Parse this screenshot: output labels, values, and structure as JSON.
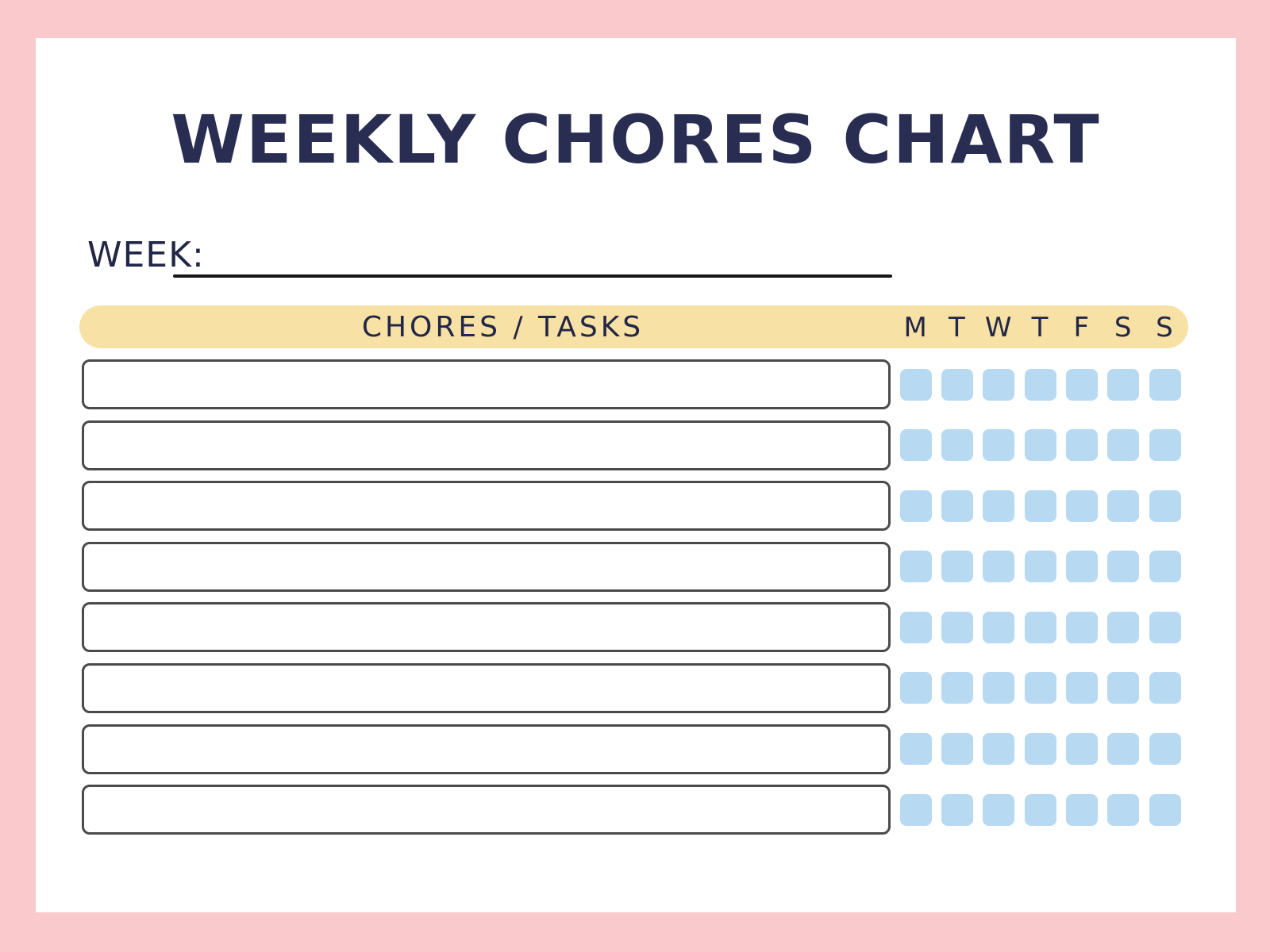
{
  "page": {
    "title": "WEEKLY CHORES CHART",
    "week": {
      "label": "WEEK:",
      "value": ""
    },
    "table": {
      "header_label": "CHORES / TASKS",
      "day_headers": [
        "M",
        "T",
        "W",
        "T",
        "F",
        "S",
        "S"
      ],
      "day_names": [
        "monday",
        "tuesday",
        "wednesday",
        "thursday",
        "friday",
        "saturday",
        "sunday"
      ],
      "row_count": 8,
      "rows": [
        {
          "chore": "",
          "checked_days": []
        },
        {
          "chore": "",
          "checked_days": []
        },
        {
          "chore": "",
          "checked_days": []
        },
        {
          "chore": "",
          "checked_days": []
        },
        {
          "chore": "",
          "checked_days": []
        },
        {
          "chore": "",
          "checked_days": []
        },
        {
          "chore": "",
          "checked_days": []
        },
        {
          "chore": "",
          "checked_days": []
        }
      ]
    },
    "colors": {
      "frame_pink": "#F9C9CB",
      "page_white": "#FFFFFF",
      "banner_yellow": "#F8E1A4",
      "checkbox_blue": "#B7D9F2",
      "title_navy": "#2A2D52",
      "text_ink": "#232747",
      "box_border_gray": "#4A4A4A",
      "underline_black": "#161616"
    }
  }
}
